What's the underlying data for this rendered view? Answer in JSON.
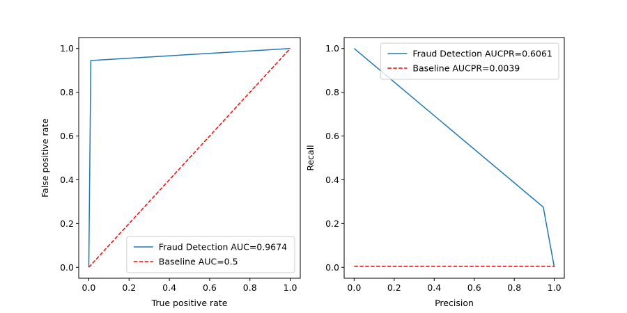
{
  "chart_data": [
    {
      "type": "line",
      "xlabel": "True positive rate",
      "ylabel": "False positive rate",
      "xlim": [
        -0.05,
        1.05
      ],
      "ylim": [
        -0.05,
        1.05
      ],
      "xticks": [
        0.0,
        0.2,
        0.4,
        0.6,
        0.8,
        1.0
      ],
      "yticks": [
        0.0,
        0.2,
        0.4,
        0.6,
        0.8,
        1.0
      ],
      "xtick_labels": [
        "0.0",
        "0.2",
        "0.4",
        "0.6",
        "0.8",
        "1.0"
      ],
      "ytick_labels": [
        "0.0",
        "0.2",
        "0.4",
        "0.6",
        "0.8",
        "1.0"
      ],
      "legend_position": "lower-right",
      "series": [
        {
          "name": "Fraud Detection AUC=0.9674",
          "color": "#1f77b4",
          "dash": "solid",
          "x": [
            0.0,
            0.01,
            1.0
          ],
          "y": [
            0.0,
            0.945,
            1.0
          ]
        },
        {
          "name": "Baseline AUC=0.5",
          "color": "#ff0000",
          "dash": "dashed",
          "x": [
            0.0,
            1.0
          ],
          "y": [
            0.0,
            1.0
          ]
        }
      ]
    },
    {
      "type": "line",
      "xlabel": "Precision",
      "ylabel": "Recall",
      "xlim": [
        -0.05,
        1.05
      ],
      "ylim": [
        -0.05,
        1.05
      ],
      "xticks": [
        0.0,
        0.2,
        0.4,
        0.6,
        0.8,
        1.0
      ],
      "yticks": [
        0.0,
        0.2,
        0.4,
        0.6,
        0.8,
        1.0
      ],
      "xtick_labels": [
        "0.0",
        "0.2",
        "0.4",
        "0.6",
        "0.8",
        "1.0"
      ],
      "ytick_labels": [
        "0.0",
        "0.2",
        "0.4",
        "0.6",
        "0.8",
        "1.0"
      ],
      "legend_position": "upper-right",
      "series": [
        {
          "name": "Fraud Detection AUCPR=0.6061",
          "color": "#1f77b4",
          "dash": "solid",
          "x": [
            0.0,
            0.945,
            1.0
          ],
          "y": [
            1.0,
            0.275,
            0.0
          ]
        },
        {
          "name": "Baseline AUCPR=0.0039",
          "color": "#ff0000",
          "dash": "dashed",
          "x": [
            0.0,
            1.0
          ],
          "y": [
            0.0039,
            0.0039
          ]
        }
      ]
    }
  ]
}
